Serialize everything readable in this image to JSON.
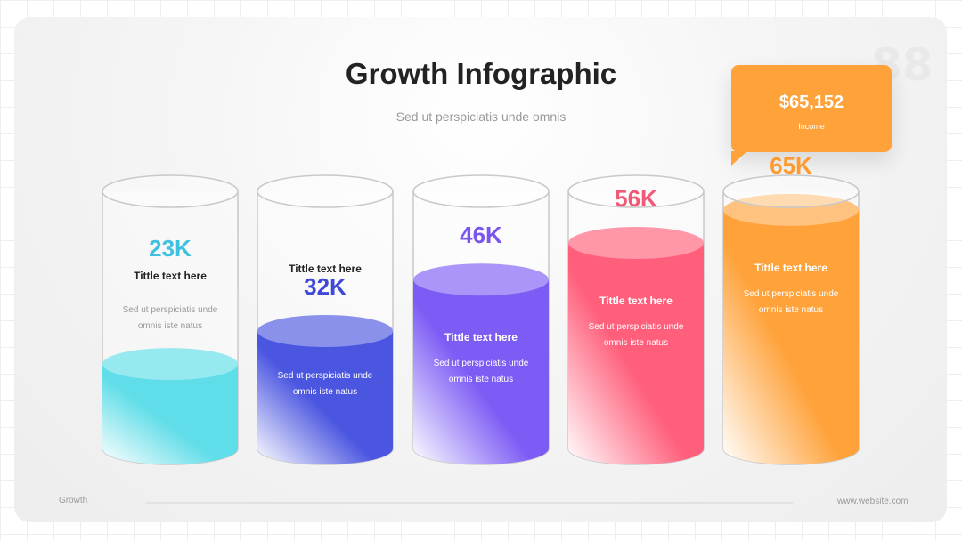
{
  "slide": {
    "title": "Growth Infographic",
    "subtitle": "Sed ut perspiciatis unde omnis",
    "page_number": "88",
    "footer_left": "Growth",
    "footer_right": "www.website.com"
  },
  "callout": {
    "value": "$65,152",
    "label": "Income",
    "color": "#ffa23a"
  },
  "chart_data": {
    "type": "bar",
    "title": "Growth Infographic",
    "categories": [
      "Tittle text here",
      "Tittle text here",
      "Tittle text here",
      "Tittle text here",
      "Tittle text here"
    ],
    "values": [
      23,
      32,
      46,
      56,
      65
    ],
    "value_labels": [
      "23K",
      "32K",
      "46K",
      "56K",
      "65K"
    ],
    "descriptions": [
      [
        "Sed ut perspiciatis unde",
        "omnis iste natus"
      ],
      [
        "Sed ut perspiciatis unde",
        "omnis iste natus"
      ],
      [
        "Sed ut perspiciatis unde",
        "omnis iste natus"
      ],
      [
        "Sed ut perspiciatis unde",
        "omnis iste natus"
      ],
      [
        "Sed ut perspiciatis unde",
        "omnis iste natus"
      ]
    ],
    "colors": [
      "#5fdde8",
      "#4a55e0",
      "#7d5cf5",
      "#ff5f7b",
      "#ffa23a"
    ],
    "label_colors": [
      "#3cc2e0",
      "#3f49d6",
      "#7a55ef",
      "#f05a77",
      "#ff9a2e"
    ],
    "ylim": [
      0,
      80
    ]
  }
}
